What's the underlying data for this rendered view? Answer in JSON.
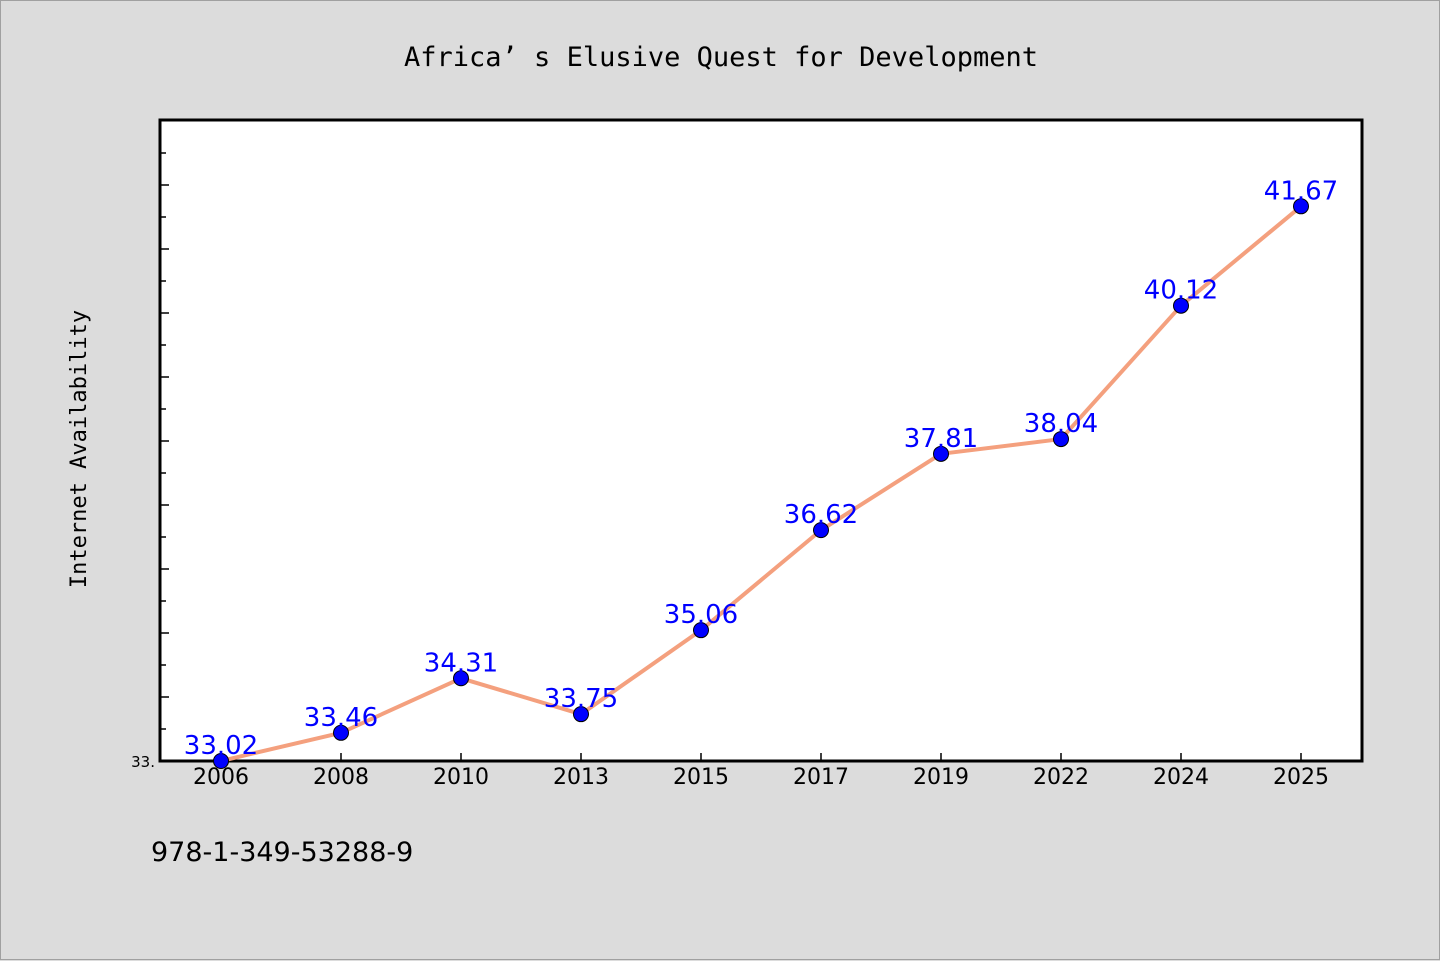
{
  "footer": {
    "isbn": "978-1-349-53288-9"
  },
  "chart_data": {
    "type": "line",
    "title": "Africa’ s Elusive Quest for Development",
    "xlabel": "",
    "ylabel": "Internet Availability",
    "categories": [
      "2006",
      "2008",
      "2010",
      "2013",
      "2015",
      "2017",
      "2019",
      "2022",
      "2024",
      "2025"
    ],
    "values": [
      33.02,
      33.46,
      34.31,
      33.75,
      35.06,
      36.62,
      37.81,
      38.04,
      40.12,
      41.67
    ],
    "data_labels": [
      "33.02",
      "33.46",
      "34.31",
      "33.75",
      "35.06",
      "36.62",
      "37.81",
      "38.04",
      "40.12",
      "41.67"
    ],
    "ytick_labels": [
      "33."
    ],
    "ylim": [
      33.02,
      43.0
    ],
    "grid": false,
    "legend": "none",
    "line_color": "#f4a07e",
    "marker_color": "#0000ff",
    "label_color": "#0000ff"
  }
}
